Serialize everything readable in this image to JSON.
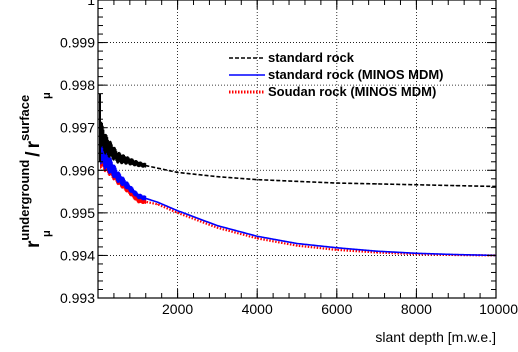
{
  "chart_data": {
    "type": "line",
    "title": "",
    "xlabel": "slant depth [m.w.e.]",
    "ylabel": {
      "base1": "r",
      "sub1": "μ",
      "sup1": "underground",
      "slash": "/",
      "base2": "r",
      "sub2": "μ",
      "sup2": "surface"
    },
    "xlim": [
      0,
      10000
    ],
    "ylim": [
      0.993,
      1.0
    ],
    "xticks": [
      2000,
      4000,
      6000,
      8000,
      10000
    ],
    "xtick_labels": [
      "2000",
      "4000",
      "6000",
      "8000",
      "10000"
    ],
    "yticks": [
      0.993,
      0.994,
      0.995,
      0.996,
      0.997,
      0.998,
      0.999,
      1.0
    ],
    "ytick_labels": [
      "0.993",
      "0.994",
      "0.995",
      "0.996",
      "0.997",
      "0.998",
      "0.999",
      "1"
    ],
    "grid": true,
    "legend_position": "top-right",
    "series": [
      {
        "name": "standard rock",
        "color": "#000000",
        "style": "dashed",
        "x": [
          60,
          200,
          500,
          1000,
          1500,
          2000,
          3000,
          4000,
          5000,
          6000,
          7000,
          8000,
          9000,
          10000
        ],
        "y": [
          0.9969,
          0.9966,
          0.9963,
          0.99615,
          0.99605,
          0.99595,
          0.99585,
          0.99578,
          0.99574,
          0.9957,
          0.99568,
          0.99566,
          0.99564,
          0.99562
        ]
      },
      {
        "name": "standard rock (MINOS MDM)",
        "color": "#0000ff",
        "style": "solid",
        "x": [
          60,
          200,
          500,
          1000,
          1500,
          2000,
          3000,
          4000,
          5000,
          6000,
          7000,
          8000,
          9000,
          10000
        ],
        "y": [
          0.9965,
          0.99625,
          0.99585,
          0.9954,
          0.99525,
          0.99505,
          0.9947,
          0.99445,
          0.99428,
          0.99418,
          0.9941,
          0.99405,
          0.99402,
          0.994
        ]
      },
      {
        "name": "Soudan rock (MINOS MDM)",
        "color": "#ff0000",
        "style": "dotted",
        "x": [
          60,
          200,
          500,
          1000,
          1500,
          2000,
          3000,
          4000,
          5000,
          6000,
          7000,
          8000,
          9000,
          10000
        ],
        "y": [
          0.9964,
          0.9962,
          0.9958,
          0.9953,
          0.9952,
          0.995,
          0.99465,
          0.9944,
          0.99423,
          0.99413,
          0.99407,
          0.99403,
          0.99401,
          0.994
        ]
      }
    ]
  }
}
